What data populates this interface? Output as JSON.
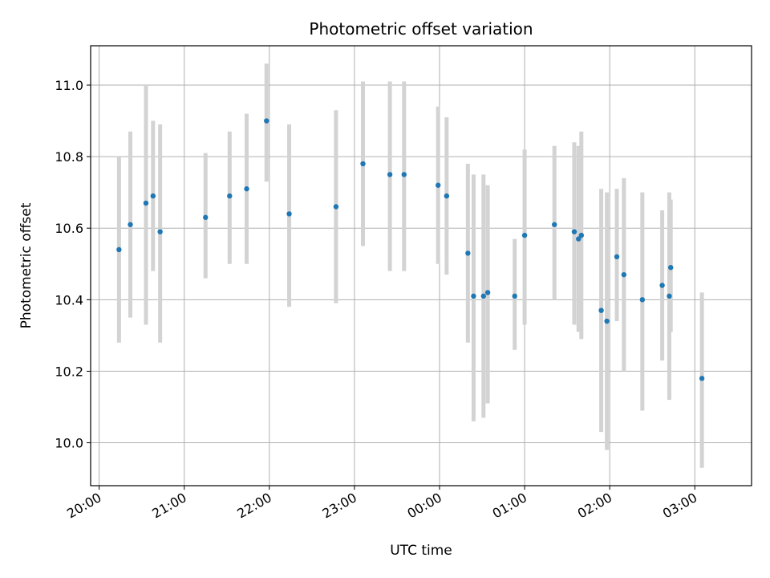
{
  "chart_data": {
    "type": "scatter",
    "title": "Photometric offset variation",
    "xlabel": "UTC time",
    "ylabel": "Photometric offset",
    "x_ticks": [
      "20:00",
      "21:00",
      "22:00",
      "23:00",
      "00:00",
      "01:00",
      "02:00",
      "03:00"
    ],
    "y_ticks": [
      "10.0",
      "10.2",
      "10.4",
      "10.6",
      "10.8",
      "11.0"
    ],
    "xlim": [
      "2024-01-01 19:54",
      "2024-01-02 03:40"
    ],
    "ylim": [
      9.88,
      11.11
    ],
    "grid": true,
    "colors": {
      "point": "#1f77b4",
      "errorbar": "#d3d3d3",
      "grid": "#b0b0b0"
    },
    "points": [
      {
        "x": "2024-01-01 20:14",
        "y": 10.54,
        "ylow": 10.28,
        "yhigh": 10.8
      },
      {
        "x": "2024-01-01 20:22",
        "y": 10.61,
        "ylow": 10.35,
        "yhigh": 10.87
      },
      {
        "x": "2024-01-01 20:33",
        "y": 10.67,
        "ylow": 10.33,
        "yhigh": 11.0
      },
      {
        "x": "2024-01-01 20:38",
        "y": 10.69,
        "ylow": 10.48,
        "yhigh": 10.9
      },
      {
        "x": "2024-01-01 20:43",
        "y": 10.59,
        "ylow": 10.28,
        "yhigh": 10.89
      },
      {
        "x": "2024-01-01 21:15",
        "y": 10.63,
        "ylow": 10.46,
        "yhigh": 10.81
      },
      {
        "x": "2024-01-01 21:32",
        "y": 10.69,
        "ylow": 10.5,
        "yhigh": 10.87
      },
      {
        "x": "2024-01-01 21:44",
        "y": 10.71,
        "ylow": 10.5,
        "yhigh": 10.92
      },
      {
        "x": "2024-01-01 21:58",
        "y": 10.9,
        "ylow": 10.73,
        "yhigh": 11.06
      },
      {
        "x": "2024-01-01 22:14",
        "y": 10.64,
        "ylow": 10.38,
        "yhigh": 10.89
      },
      {
        "x": "2024-01-01 22:47",
        "y": 10.66,
        "ylow": 10.39,
        "yhigh": 10.93
      },
      {
        "x": "2024-01-01 23:06",
        "y": 10.78,
        "ylow": 10.55,
        "yhigh": 11.01
      },
      {
        "x": "2024-01-01 23:25",
        "y": 10.75,
        "ylow": 10.48,
        "yhigh": 11.01
      },
      {
        "x": "2024-01-01 23:35",
        "y": 10.75,
        "ylow": 10.48,
        "yhigh": 11.01
      },
      {
        "x": "2024-01-01 23:59",
        "y": 10.72,
        "ylow": 10.5,
        "yhigh": 10.94
      },
      {
        "x": "2024-01-02 00:05",
        "y": 10.69,
        "ylow": 10.47,
        "yhigh": 10.91
      },
      {
        "x": "2024-01-02 00:20",
        "y": 10.53,
        "ylow": 10.28,
        "yhigh": 10.78
      },
      {
        "x": "2024-01-02 00:24",
        "y": 10.41,
        "ylow": 10.06,
        "yhigh": 10.75
      },
      {
        "x": "2024-01-02 00:31",
        "y": 10.41,
        "ylow": 10.07,
        "yhigh": 10.75
      },
      {
        "x": "2024-01-02 00:34",
        "y": 10.42,
        "ylow": 10.11,
        "yhigh": 10.72
      },
      {
        "x": "2024-01-02 00:53",
        "y": 10.41,
        "ylow": 10.26,
        "yhigh": 10.57
      },
      {
        "x": "2024-01-02 01:00",
        "y": 10.58,
        "ylow": 10.33,
        "yhigh": 10.82
      },
      {
        "x": "2024-01-02 01:21",
        "y": 10.61,
        "ylow": 10.4,
        "yhigh": 10.83
      },
      {
        "x": "2024-01-02 01:35",
        "y": 10.59,
        "ylow": 10.33,
        "yhigh": 10.84
      },
      {
        "x": "2024-01-02 01:38",
        "y": 10.57,
        "ylow": 10.31,
        "yhigh": 10.83
      },
      {
        "x": "2024-01-02 01:40",
        "y": 10.58,
        "ylow": 10.29,
        "yhigh": 10.87
      },
      {
        "x": "2024-01-02 01:54",
        "y": 10.37,
        "ylow": 10.03,
        "yhigh": 10.71
      },
      {
        "x": "2024-01-02 01:58",
        "y": 10.34,
        "ylow": 9.98,
        "yhigh": 10.7
      },
      {
        "x": "2024-01-02 02:05",
        "y": 10.52,
        "ylow": 10.34,
        "yhigh": 10.71
      },
      {
        "x": "2024-01-02 02:10",
        "y": 10.47,
        "ylow": 10.2,
        "yhigh": 10.74
      },
      {
        "x": "2024-01-02 02:23",
        "y": 10.4,
        "ylow": 10.09,
        "yhigh": 10.7
      },
      {
        "x": "2024-01-02 02:37",
        "y": 10.44,
        "ylow": 10.23,
        "yhigh": 10.65
      },
      {
        "x": "2024-01-02 02:42",
        "y": 10.41,
        "ylow": 10.12,
        "yhigh": 10.7
      },
      {
        "x": "2024-01-02 02:43",
        "y": 10.49,
        "ylow": 10.31,
        "yhigh": 10.68
      },
      {
        "x": "2024-01-02 03:05",
        "y": 10.18,
        "ylow": 9.93,
        "yhigh": 10.42
      }
    ]
  }
}
